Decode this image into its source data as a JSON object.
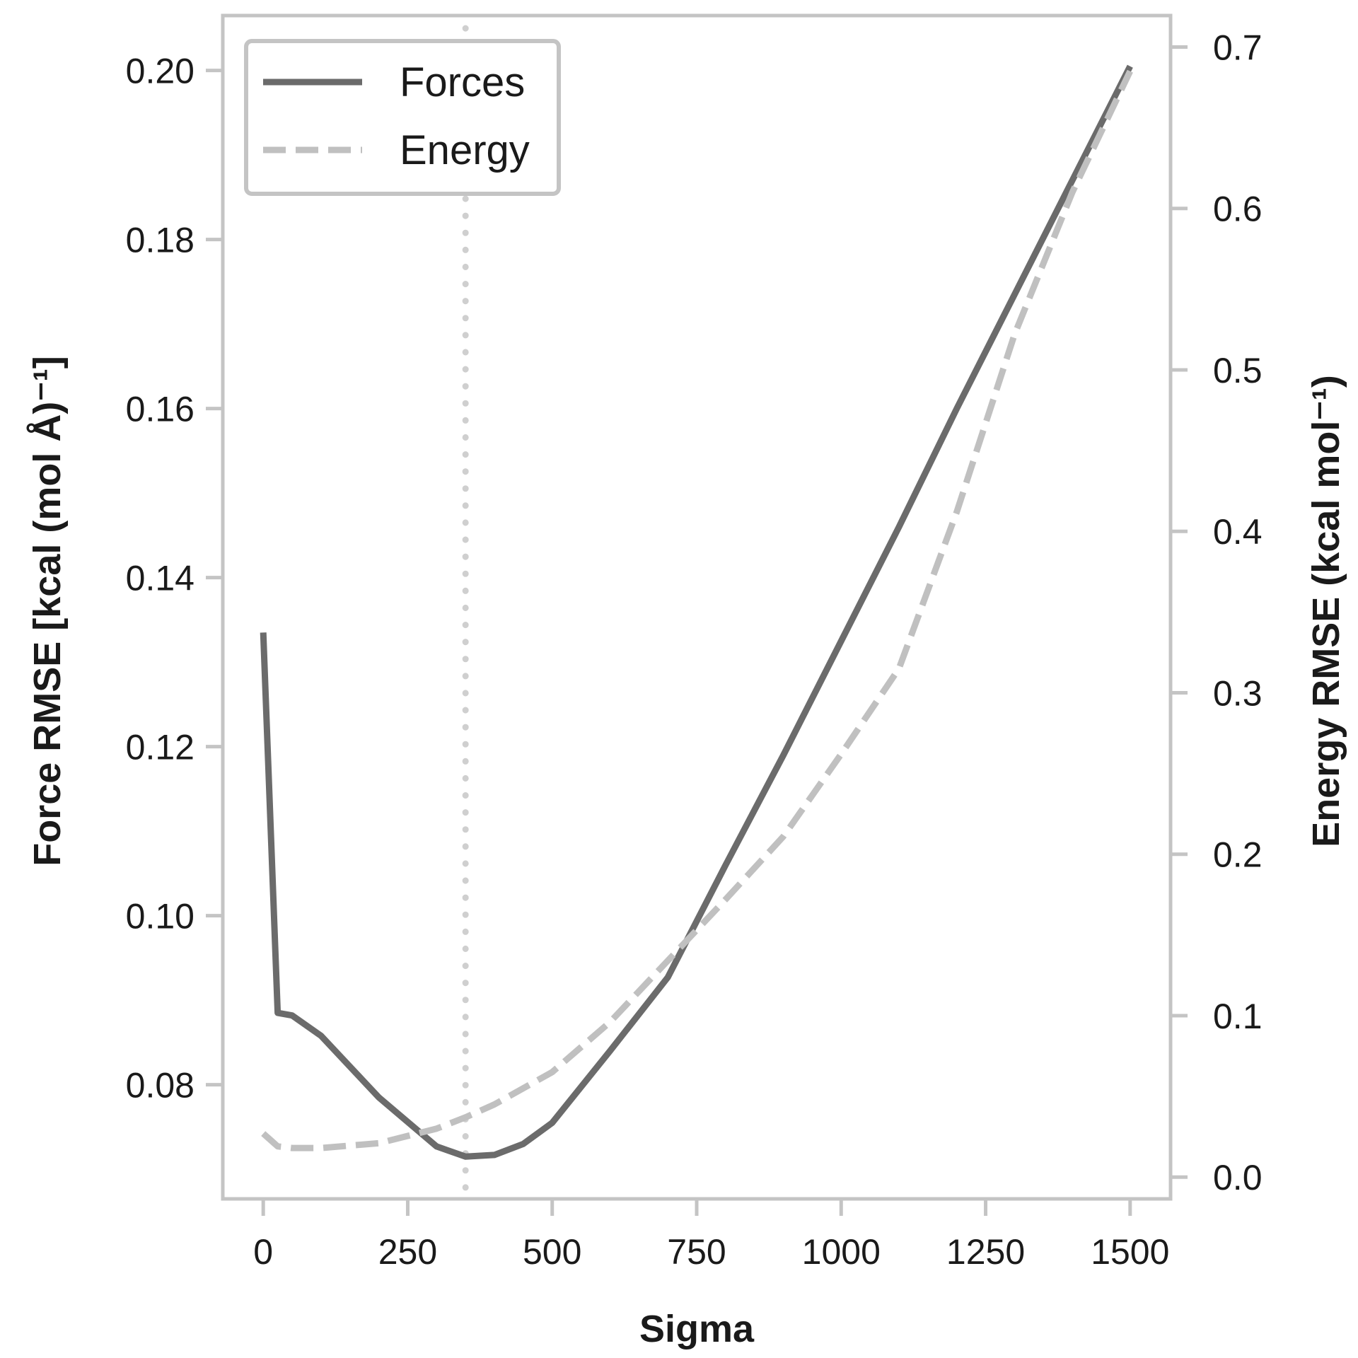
{
  "chart_data": {
    "type": "line",
    "xlabel": "Sigma",
    "ylabel": "Force RMSE [kcal (mol Å)⁻¹]",
    "y2label": "Energy RMSE (kcal mol⁻¹)",
    "xlim": [
      -70,
      1570
    ],
    "ylim": [
      0.0665,
      0.2065
    ],
    "y2lim": [
      -0.0135,
      0.7195
    ],
    "xticks": [
      0,
      250,
      500,
      750,
      1000,
      1250,
      1500
    ],
    "xtick_labels": [
      "0",
      "250",
      "500",
      "750",
      "1000",
      "1250",
      "1500"
    ],
    "yticks": [
      0.08,
      0.1,
      0.12,
      0.14,
      0.16,
      0.18,
      0.2
    ],
    "ytick_labels": [
      "0.08",
      "0.10",
      "0.12",
      "0.14",
      "0.16",
      "0.18",
      "0.20"
    ],
    "y2ticks": [
      0.0,
      0.1,
      0.2,
      0.3,
      0.4,
      0.5,
      0.6,
      0.7
    ],
    "y2tick_labels": [
      "0.0",
      "0.1",
      "0.2",
      "0.3",
      "0.4",
      "0.5",
      "0.6",
      "0.7"
    ],
    "grid": false,
    "legend_position": "top-left",
    "vline_x": 350,
    "colors": {
      "forces": "#6b6b6b",
      "energy": "#c0c0c0",
      "frame": "#c4c4c4"
    },
    "series": [
      {
        "name": "Forces",
        "axis": "left",
        "style": "solid",
        "x": [
          0,
          25,
          50,
          100,
          200,
          300,
          350,
          400,
          450,
          500,
          600,
          700,
          800,
          900,
          1000,
          1100,
          1200,
          1300,
          1400,
          1500
        ],
        "y": [
          0.1335,
          0.0885,
          0.0882,
          0.0858,
          0.0785,
          0.0727,
          0.0715,
          0.0717,
          0.073,
          0.0755,
          0.084,
          0.0927,
          0.106,
          0.119,
          0.1325,
          0.146,
          0.16,
          0.1735,
          0.187,
          0.2005
        ]
      },
      {
        "name": "Energy",
        "axis": "right",
        "style": "dashed",
        "x": [
          0,
          25,
          50,
          100,
          200,
          300,
          350,
          400,
          500,
          600,
          700,
          800,
          900,
          1000,
          1100,
          1200,
          1300,
          1400,
          1500
        ],
        "y": [
          0.027,
          0.019,
          0.018,
          0.018,
          0.021,
          0.03,
          0.037,
          0.045,
          0.065,
          0.096,
          0.134,
          0.172,
          0.211,
          0.262,
          0.315,
          0.412,
          0.522,
          0.61,
          0.685
        ]
      }
    ]
  }
}
